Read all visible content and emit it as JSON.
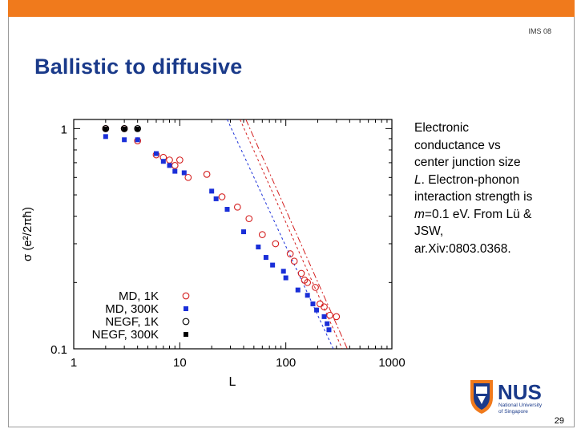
{
  "slide": {
    "header_label": "IMS 08",
    "title": "Ballistic to diffusive",
    "page_number": "29",
    "accent_color": "#f07a1c",
    "title_color": "#1a3a8a"
  },
  "caption": {
    "line1": "Electronic",
    "line2": "conductance vs",
    "line3": "center junction size",
    "line4_var": "L",
    "line4_rest": ". Electron-phonon",
    "line5": "interaction strength is",
    "line6_var": "m",
    "line6_rest": "=0.1 eV. From Lü &",
    "line7": "JSW,",
    "line8": "ar.Xiv:0803.0368."
  },
  "logo": {
    "name": "NUS",
    "line1": "National University",
    "line2": "of Singapore"
  },
  "chart_data": {
    "type": "scatter",
    "x_scale": "log",
    "y_scale": "log",
    "xlim": [
      1,
      1000
    ],
    "ylim": [
      0.1,
      1.1
    ],
    "xlabel": "L",
    "ylabel": "σ (e²/2πħ)",
    "x_ticks": [
      {
        "value": 1,
        "label": "1"
      },
      {
        "value": 10,
        "label": "10"
      },
      {
        "value": 100,
        "label": "100"
      },
      {
        "value": 1000,
        "label": "1000"
      }
    ],
    "y_ticks": [
      {
        "value": 1,
        "label": "1"
      },
      {
        "value": 0.1,
        "label": "0.1"
      }
    ],
    "series": [
      {
        "name": "MD, 1K",
        "marker": "open-circle",
        "color": "#d42020",
        "points": [
          [
            2,
            1.0
          ],
          [
            3,
            1.0
          ],
          [
            4,
            0.88
          ],
          [
            6,
            0.76
          ],
          [
            7,
            0.74
          ],
          [
            8,
            0.72
          ],
          [
            9,
            0.68
          ],
          [
            10,
            0.72
          ],
          [
            12,
            0.6
          ],
          [
            18,
            0.62
          ],
          [
            25,
            0.49
          ],
          [
            35,
            0.44
          ],
          [
            45,
            0.39
          ],
          [
            60,
            0.33
          ],
          [
            80,
            0.3
          ],
          [
            110,
            0.27
          ],
          [
            120,
            0.25
          ],
          [
            140,
            0.22
          ],
          [
            150,
            0.205
          ],
          [
            160,
            0.2
          ],
          [
            190,
            0.19
          ],
          [
            210,
            0.16
          ],
          [
            230,
            0.155
          ],
          [
            260,
            0.142
          ],
          [
            300,
            0.14
          ]
        ]
      },
      {
        "name": "MD, 300K",
        "marker": "filled-square",
        "color": "#1a2fd8",
        "points": [
          [
            2,
            0.92
          ],
          [
            3,
            0.89
          ],
          [
            4,
            0.89
          ],
          [
            6,
            0.77
          ],
          [
            7,
            0.71
          ],
          [
            8,
            0.68
          ],
          [
            9,
            0.64
          ],
          [
            11,
            0.63
          ],
          [
            20,
            0.52
          ],
          [
            22,
            0.48
          ],
          [
            28,
            0.43
          ],
          [
            40,
            0.34
          ],
          [
            55,
            0.29
          ],
          [
            65,
            0.26
          ],
          [
            75,
            0.24
          ],
          [
            95,
            0.225
          ],
          [
            100,
            0.21
          ],
          [
            130,
            0.185
          ],
          [
            160,
            0.175
          ],
          [
            180,
            0.16
          ],
          [
            195,
            0.15
          ],
          [
            230,
            0.14
          ],
          [
            245,
            0.13
          ],
          [
            255,
            0.122
          ]
        ]
      },
      {
        "name": "NEGF, 1K",
        "marker": "open-circle",
        "color": "#000000",
        "points": [
          [
            2,
            1.0
          ],
          [
            3,
            1.0
          ],
          [
            4,
            1.0
          ]
        ]
      },
      {
        "name": "NEGF, 300K",
        "marker": "filled-square",
        "color": "#000000",
        "points": [
          [
            2,
            0.995
          ],
          [
            3,
            0.995
          ],
          [
            4,
            0.995
          ]
        ]
      }
    ],
    "guide_lines": [
      {
        "style": "dashed",
        "color": "#1a2fd8",
        "from": [
          28,
          1.1
        ],
        "to": [
          280,
          0.1
        ]
      },
      {
        "style": "dashed",
        "color": "#d42020",
        "from": [
          37,
          1.1
        ],
        "to": [
          340,
          0.1
        ]
      },
      {
        "style": "dashdot",
        "color": "#d42020",
        "from": [
          42,
          1.1
        ],
        "to": [
          380,
          0.1
        ]
      }
    ],
    "legend_location": "bottom-left"
  }
}
